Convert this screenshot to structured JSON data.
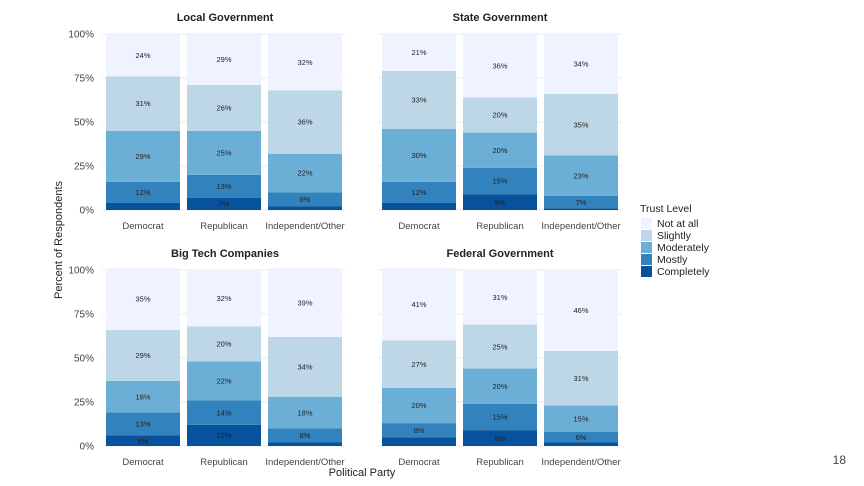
{
  "page_number": "18",
  "chart_data": {
    "type": "bar",
    "stacked": true,
    "xlabel": "Political Party",
    "ylabel": "Percent of Respondents",
    "ylim": [
      0,
      100
    ],
    "yticks": [
      "0%",
      "25%",
      "50%",
      "75%",
      "100%"
    ],
    "ytick_values": [
      0,
      25,
      50,
      75,
      100
    ],
    "categories": [
      "Democrat",
      "Republican",
      "Independent/Other"
    ],
    "legend": {
      "title": "Trust Level",
      "position": "right",
      "items": [
        {
          "label": "Not at all",
          "color": "#eff3ff"
        },
        {
          "label": "Slightly",
          "color": "#bdd7e7"
        },
        {
          "label": "Moderately",
          "color": "#6baed6"
        },
        {
          "label": "Mostly",
          "color": "#3182bd"
        },
        {
          "label": "Completely",
          "color": "#08519c"
        }
      ]
    },
    "stack_order_bottom_to_top": [
      "Completely",
      "Mostly",
      "Moderately",
      "Slightly",
      "Not at all"
    ],
    "panels": [
      {
        "title": "Local Government",
        "bars": [
          {
            "category": "Democrat",
            "values": [
              4,
              12,
              29,
              31,
              24
            ],
            "labels": [
              "",
              "12%",
              "29%",
              "31%",
              "24%"
            ]
          },
          {
            "category": "Republican",
            "values": [
              7,
              13,
              25,
              26,
              29
            ],
            "labels": [
              "7%",
              "13%",
              "25%",
              "26%",
              "29%"
            ]
          },
          {
            "category": "Independent/Other",
            "values": [
              2,
              8,
              22,
              36,
              32
            ],
            "labels": [
              "",
              "8%",
              "22%",
              "36%",
              "32%"
            ]
          }
        ]
      },
      {
        "title": "State Government",
        "bars": [
          {
            "category": "Democrat",
            "values": [
              4,
              12,
              30,
              33,
              21
            ],
            "labels": [
              "",
              "12%",
              "30%",
              "33%",
              "21%"
            ]
          },
          {
            "category": "Republican",
            "values": [
              9,
              15,
              20,
              20,
              36
            ],
            "labels": [
              "9%",
              "15%",
              "20%",
              "20%",
              "36%"
            ]
          },
          {
            "category": "Independent/Other",
            "values": [
              1,
              7,
              23,
              35,
              34
            ],
            "labels": [
              "",
              "7%",
              "23%",
              "35%",
              "34%"
            ]
          }
        ]
      },
      {
        "title": "Big Tech Companies",
        "bars": [
          {
            "category": "Democrat",
            "values": [
              6,
              13,
              18,
              29,
              35
            ],
            "labels": [
              "6%",
              "13%",
              "18%",
              "29%",
              "35%"
            ]
          },
          {
            "category": "Republican",
            "values": [
              12,
              14,
              22,
              20,
              32
            ],
            "labels": [
              "12%",
              "14%",
              "22%",
              "20%",
              "32%"
            ]
          },
          {
            "category": "Independent/Other",
            "values": [
              2,
              8,
              18,
              34,
              39
            ],
            "labels": [
              "",
              "8%",
              "18%",
              "34%",
              "39%"
            ]
          }
        ]
      },
      {
        "title": "Federal Government",
        "bars": [
          {
            "category": "Democrat",
            "values": [
              5,
              8,
              20,
              27,
              41
            ],
            "labels": [
              "",
              "8%",
              "20%",
              "27%",
              "41%"
            ]
          },
          {
            "category": "Republican",
            "values": [
              9,
              15,
              20,
              25,
              31
            ],
            "labels": [
              "9%",
              "15%",
              "20%",
              "25%",
              "31%"
            ]
          },
          {
            "category": "Independent/Other",
            "values": [
              2,
              6,
              15,
              31,
              46
            ],
            "labels": [
              "",
              "6%",
              "15%",
              "31%",
              "46%"
            ]
          }
        ]
      }
    ]
  }
}
